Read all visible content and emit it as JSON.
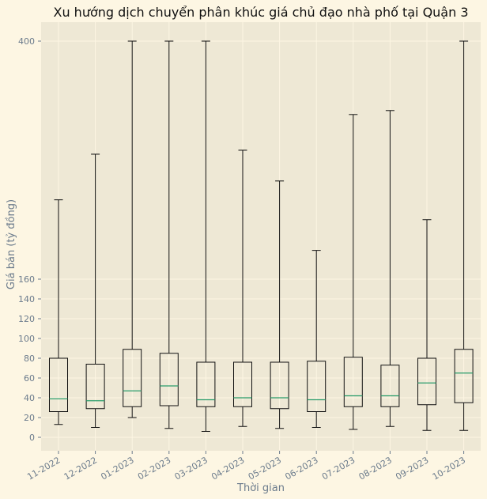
{
  "chart_data": {
    "type": "box",
    "title": "Xu hướng dịch chuyển phân khúc giá chủ đạo nhà phố tại Quận 3",
    "xlabel": "Thời gian",
    "ylabel": "Giá bán (tỷ đồng)",
    "y_ticks": [
      0,
      20,
      40,
      60,
      80,
      100,
      120,
      140,
      160,
      400
    ],
    "y_tick_labels": [
      "0",
      "20",
      "40",
      "60",
      "80",
      "100",
      "120",
      "140",
      "160",
      "400"
    ],
    "grid": true,
    "colors": {
      "figure_bg": "#fdf6e3",
      "plot_bg": "#eee8d5",
      "grid": "#fdf6e3",
      "box": "#111111",
      "median": "#2a9d6b",
      "text": "#6b7b8c"
    },
    "categories": [
      "11-2022",
      "12-2022",
      "01-2023",
      "02-2023",
      "03-2023",
      "04-2023",
      "05-2023",
      "06-2023",
      "07-2023",
      "08-2023",
      "09-2023",
      "10-2023"
    ],
    "boxes": [
      {
        "whislo": 13,
        "q1": 26,
        "med": 39,
        "q3": 80,
        "whishi": 240
      },
      {
        "whislo": 10,
        "q1": 29,
        "med": 37,
        "q3": 74,
        "whishi": 286
      },
      {
        "whislo": 20,
        "q1": 31,
        "med": 47,
        "q3": 89,
        "whishi": 400
      },
      {
        "whislo": 9,
        "q1": 32,
        "med": 52,
        "q3": 85,
        "whishi": 400
      },
      {
        "whislo": 6,
        "q1": 31,
        "med": 38,
        "q3": 76,
        "whishi": 400
      },
      {
        "whislo": 11,
        "q1": 31,
        "med": 40,
        "q3": 76,
        "whishi": 290
      },
      {
        "whislo": 9,
        "q1": 29,
        "med": 40,
        "q3": 76,
        "whishi": 259
      },
      {
        "whislo": 10,
        "q1": 26,
        "med": 38,
        "q3": 77,
        "whishi": 189
      },
      {
        "whislo": 8,
        "q1": 31,
        "med": 42,
        "q3": 81,
        "whishi": 326
      },
      {
        "whislo": 11,
        "q1": 31,
        "med": 42,
        "q3": 73,
        "whishi": 330
      },
      {
        "whislo": 7,
        "q1": 33,
        "med": 55,
        "q3": 80,
        "whishi": 220
      },
      {
        "whislo": 7,
        "q1": 35,
        "med": 65,
        "q3": 89,
        "whishi": 400
      }
    ]
  }
}
